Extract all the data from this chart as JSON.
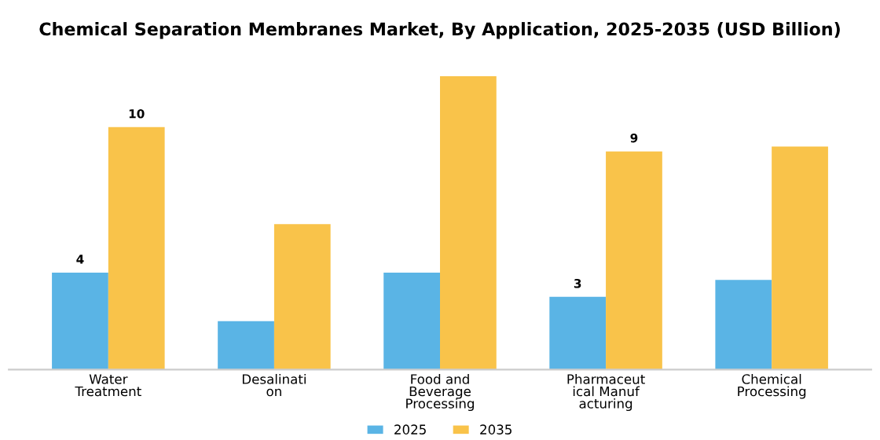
{
  "chart_data": {
    "type": "bar",
    "title": "Chemical Separation Membranes Market, By Application, 2025-2035 (USD Billion)",
    "categories": [
      "Water\nTreatment",
      "Desalinati\non",
      "Food and\nBeverage\nProcessing",
      "Pharmaceut\nical Manuf\nacturing",
      "Chemical\nProcessing"
    ],
    "series": [
      {
        "name": "2025",
        "color": "#5ab4e5",
        "values": [
          4,
          2.0,
          4.0,
          3,
          3.7
        ],
        "value_labels": [
          "4",
          null,
          null,
          "3",
          null
        ]
      },
      {
        "name": "2035",
        "color": "#f9c34a",
        "values": [
          10,
          6.0,
          12.1,
          9,
          9.2
        ],
        "value_labels": [
          "10",
          null,
          null,
          "9",
          null
        ]
      }
    ],
    "legend": "bottom",
    "grid": false
  }
}
